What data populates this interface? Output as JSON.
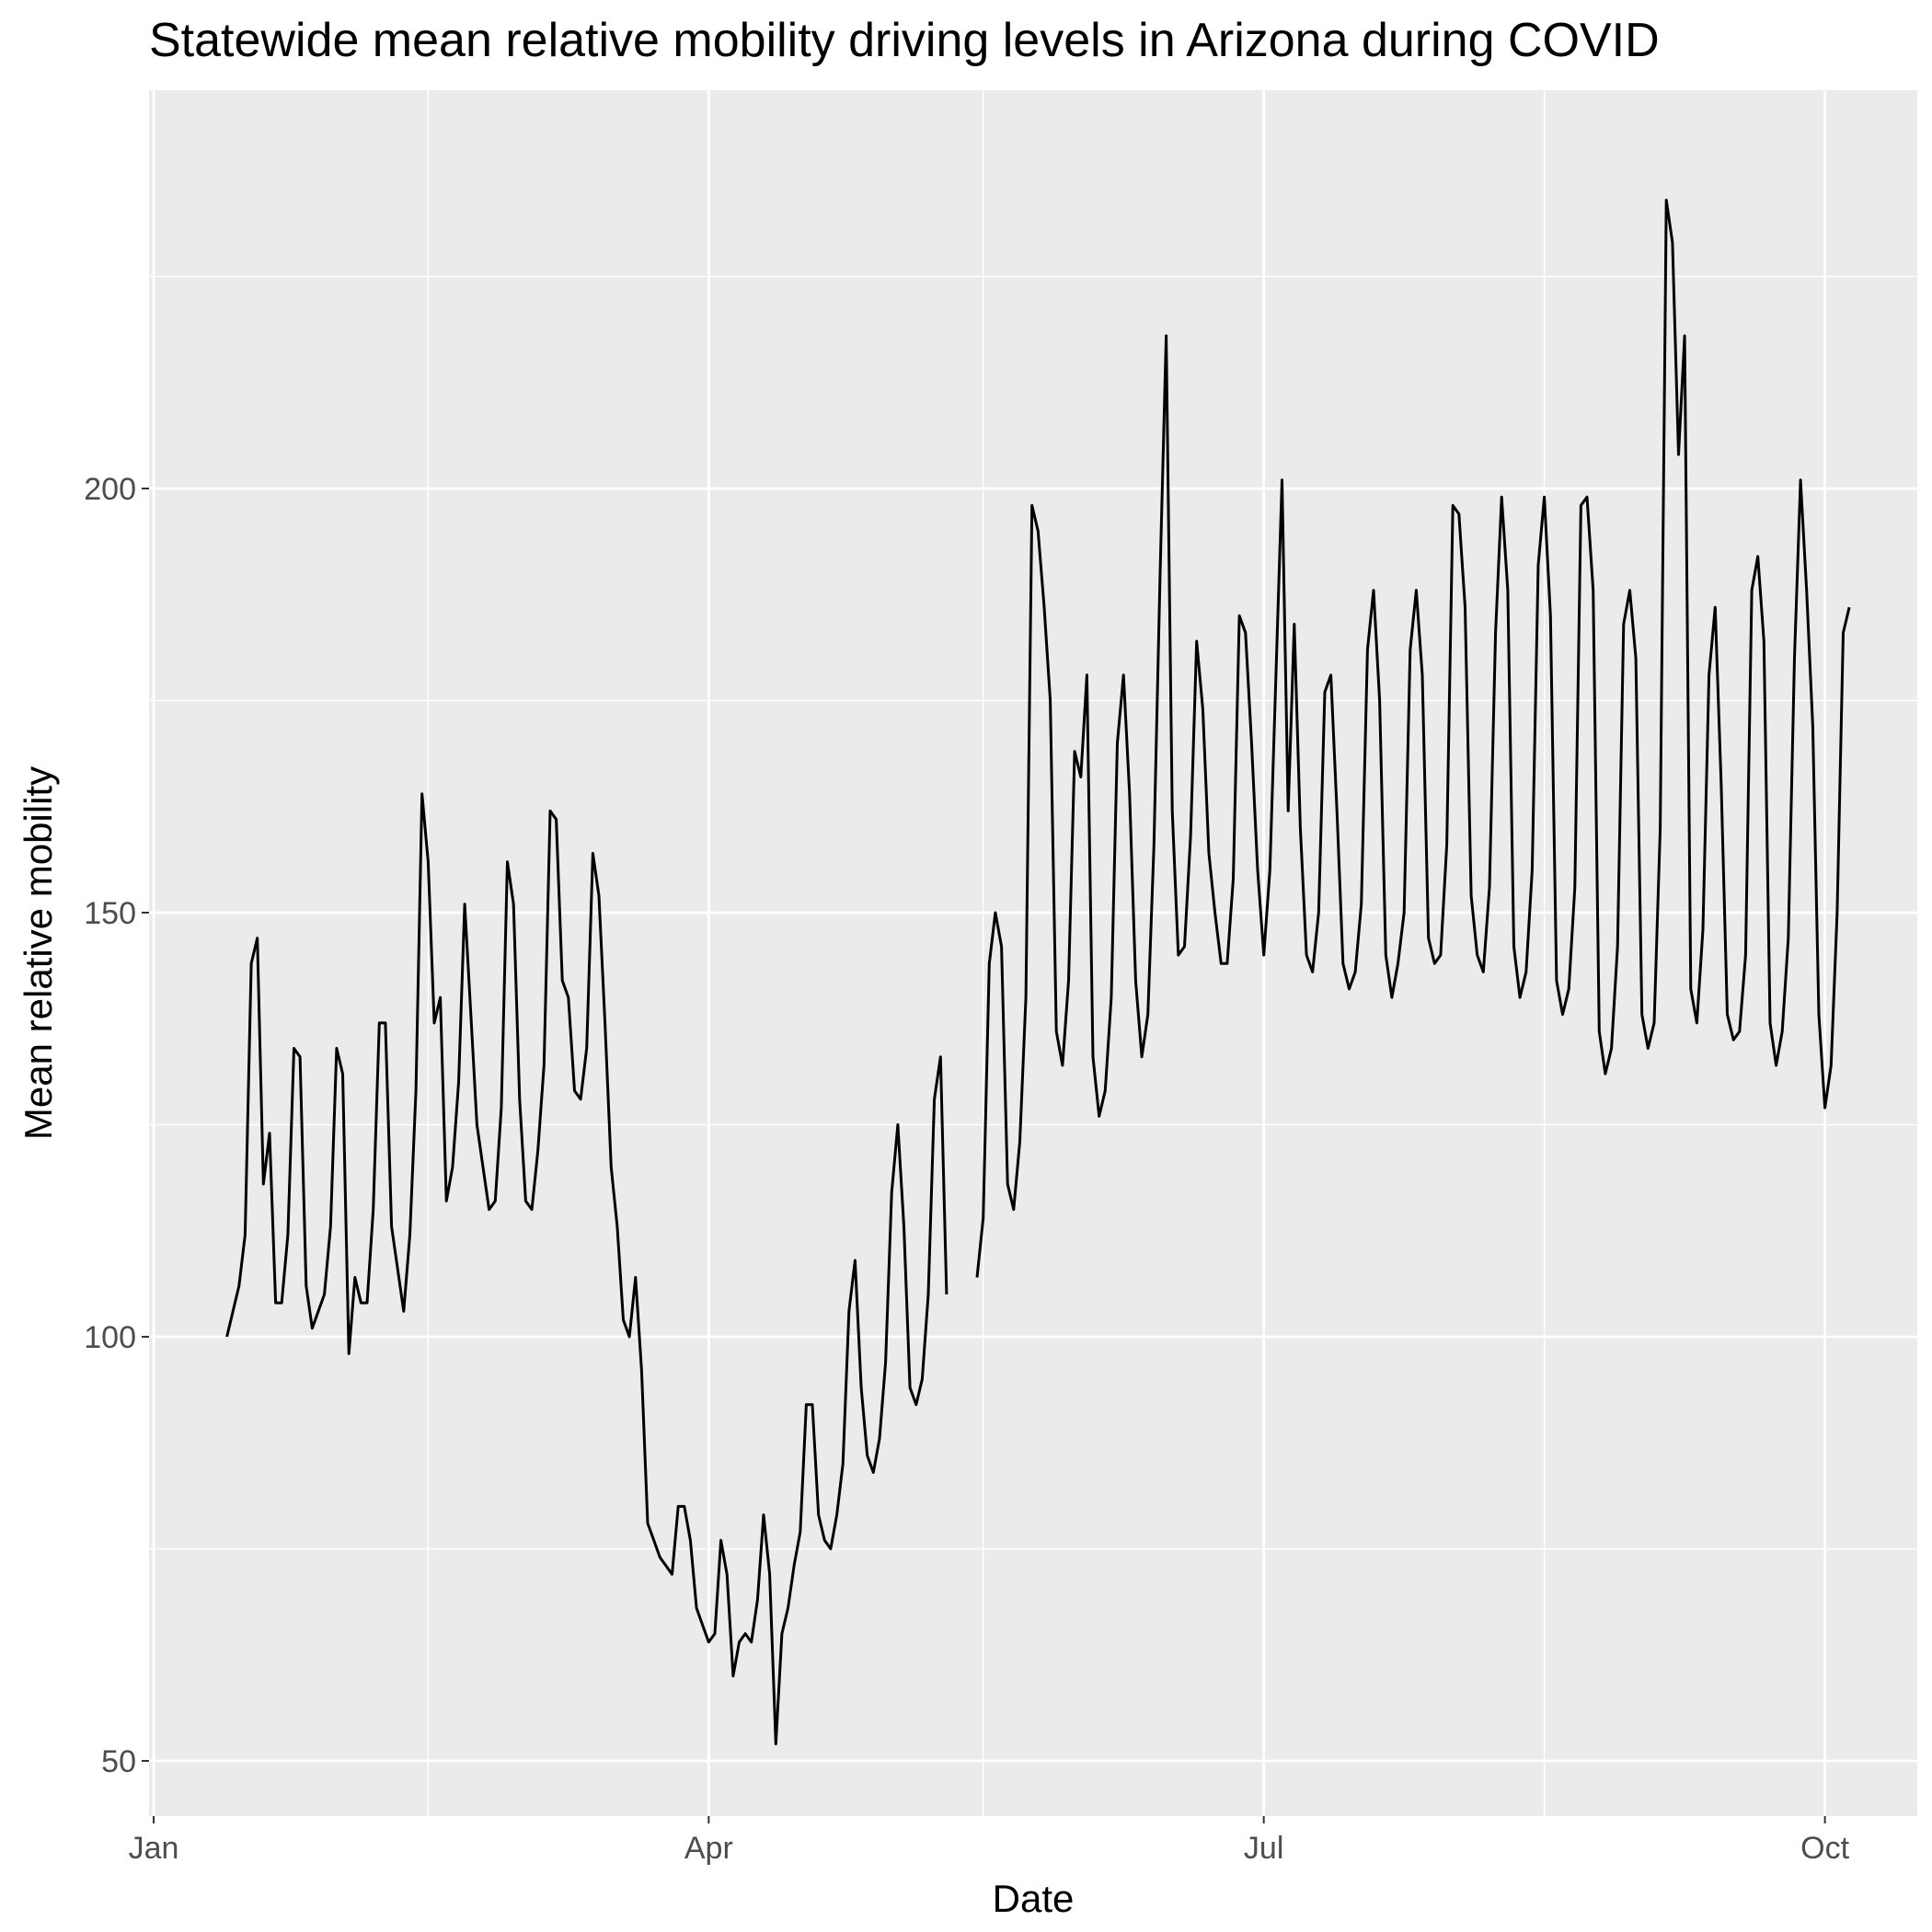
{
  "chart_data": {
    "type": "line",
    "title": "Statewide mean relative mobility driving levels in Arizona during COVID",
    "xlabel": "Date",
    "ylabel": "Mean relative mobility",
    "x_ticks": [
      "Jan",
      "Apr",
      "Jul",
      "Oct"
    ],
    "y_ticks": [
      50,
      100,
      150,
      200
    ],
    "ylim": [
      45,
      240
    ],
    "grid": true,
    "background": "#ebebeb",
    "line_color": "#000000",
    "series": [
      {
        "x_start": "2020-01-13",
        "x_end": "2020-10-05",
        "values": [
          100,
          103,
          106,
          112,
          144,
          147,
          118,
          124,
          104,
          104,
          112,
          134,
          133,
          106,
          101,
          103,
          105,
          113,
          134,
          131,
          98,
          107,
          104,
          104,
          115,
          137,
          137,
          113,
          108,
          103,
          112,
          129,
          164,
          156,
          137,
          140,
          116,
          120,
          130,
          151,
          138,
          125,
          120,
          115,
          116,
          127,
          156,
          151,
          128,
          116,
          115,
          122,
          132,
          162,
          161,
          142,
          140,
          129,
          128,
          134,
          157,
          152,
          137,
          120,
          113,
          102,
          100,
          107,
          96,
          78,
          76,
          74,
          73,
          72,
          80,
          80,
          76,
          68,
          66,
          64,
          65,
          76,
          72,
          60,
          64,
          65,
          64,
          69,
          79,
          72,
          52,
          65,
          68,
          73,
          77,
          92,
          92,
          79,
          76,
          75,
          79,
          85,
          103,
          109,
          94,
          86,
          84,
          88,
          97,
          117,
          125,
          113,
          94,
          92,
          95,
          105,
          128,
          133,
          105,
          null,
          null,
          null,
          null,
          107,
          114,
          144,
          150,
          146,
          118,
          115,
          123,
          140,
          198,
          195,
          186,
          175,
          136,
          132,
          142,
          169,
          166,
          178,
          133,
          126,
          129,
          140,
          170,
          178,
          164,
          142,
          133,
          138,
          158,
          190,
          218,
          162,
          145,
          146,
          159,
          182,
          174,
          157,
          150,
          144,
          144,
          154,
          185,
          183,
          170,
          155,
          145,
          155,
          178,
          201,
          162,
          184,
          160,
          145,
          143,
          150,
          176,
          178,
          162,
          144,
          141,
          143,
          151,
          181,
          188,
          175,
          145,
          140,
          144,
          150,
          181,
          188,
          178,
          147,
          144,
          145,
          158,
          198,
          197,
          186,
          152,
          145,
          143,
          153,
          183,
          199,
          188,
          146,
          140,
          143,
          155,
          191,
          199,
          185,
          142,
          138,
          141,
          153,
          198,
          199,
          188,
          136,
          131,
          134,
          146,
          184,
          188,
          180,
          138,
          134,
          137,
          160,
          234,
          229,
          204,
          218,
          141,
          137,
          148,
          178,
          186,
          165,
          138,
          135,
          136,
          145,
          188,
          192,
          182,
          137,
          132,
          136,
          147,
          180,
          201,
          188,
          172,
          138,
          127,
          132,
          150,
          183,
          186
        ]
      }
    ]
  }
}
